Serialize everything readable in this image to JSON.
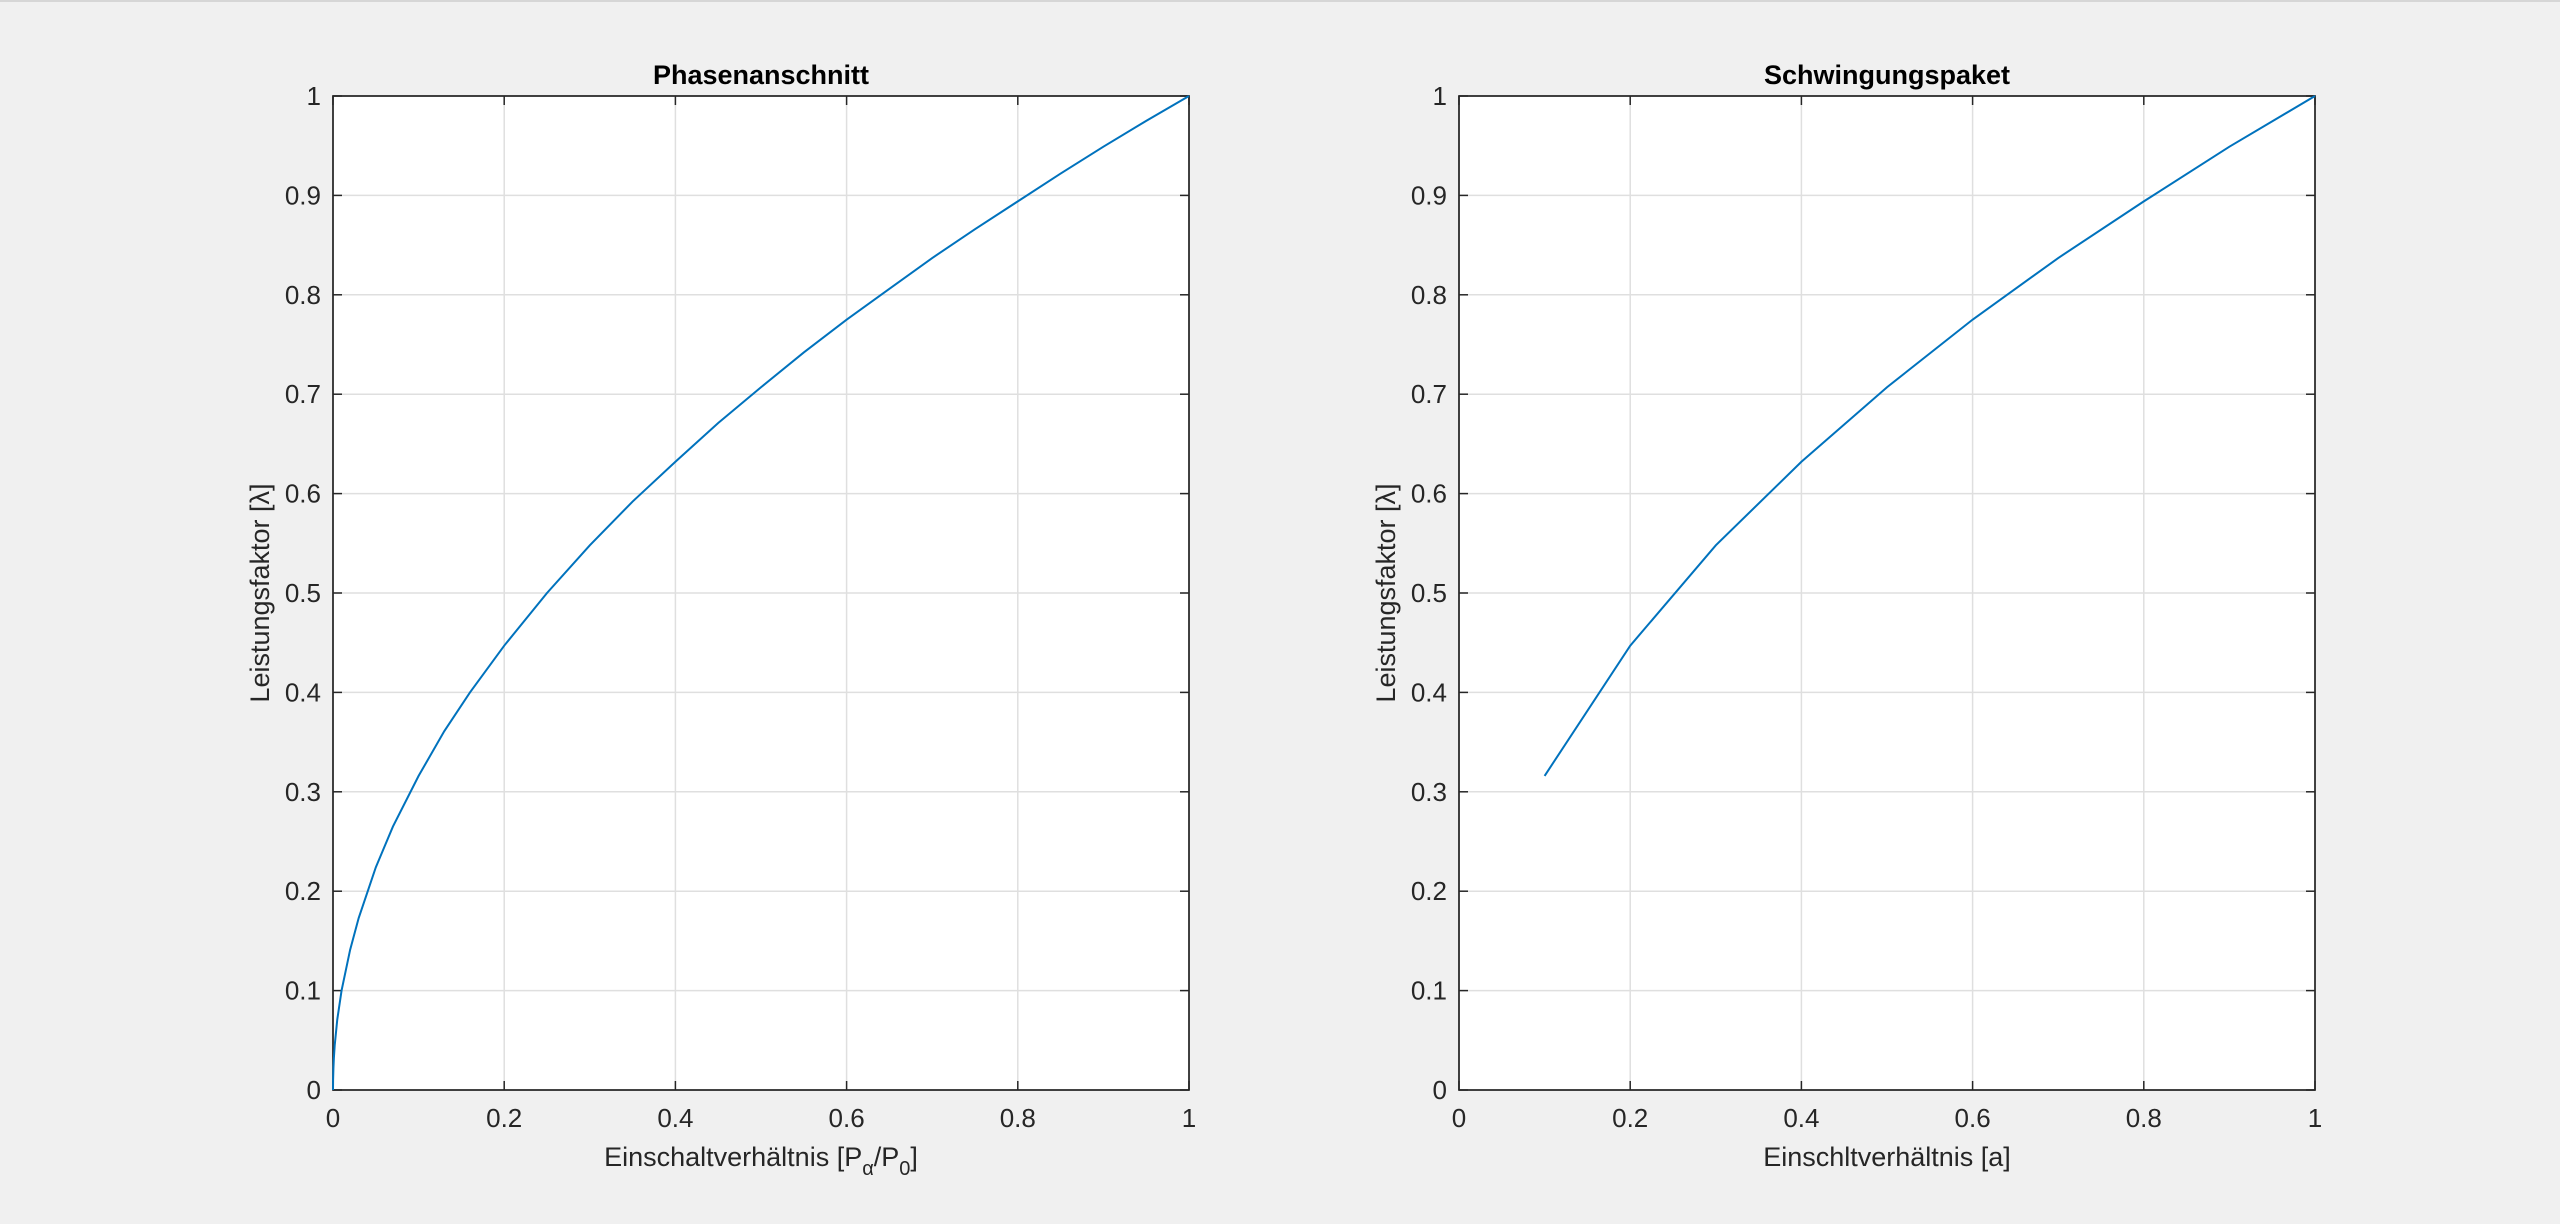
{
  "chart_data": [
    {
      "type": "line",
      "title": "Phasenanschnitt",
      "xlabel": "Einschaltverhältnis [P",
      "xlabel_sub1": "α",
      "xlabel_mid": "/P",
      "xlabel_sub2": "0",
      "xlabel_end": "]",
      "ylabel": "Leistungsfaktor [λ]",
      "xlim": [
        0,
        1
      ],
      "ylim": [
        0,
        1
      ],
      "xticks": [
        "0",
        "0.2",
        "0.4",
        "0.6",
        "0.8",
        "1"
      ],
      "yticks": [
        "0",
        "0.1",
        "0.2",
        "0.3",
        "0.4",
        "0.5",
        "0.6",
        "0.7",
        "0.8",
        "0.9",
        "1"
      ],
      "grid": true,
      "color": "#0072bd",
      "series": [
        {
          "x": [
            0,
            0.0001,
            0.0005,
            0.001,
            0.002,
            0.005,
            0.01,
            0.02,
            0.03,
            0.05,
            0.07,
            0.1,
            0.13,
            0.16,
            0.2,
            0.25,
            0.3,
            0.35,
            0.4,
            0.45,
            0.5,
            0.55,
            0.6,
            0.65,
            0.7,
            0.75,
            0.8,
            0.85,
            0.9,
            0.95,
            1
          ],
          "y": [
            0,
            0.01,
            0.022,
            0.032,
            0.045,
            0.071,
            0.1,
            0.141,
            0.173,
            0.224,
            0.265,
            0.316,
            0.361,
            0.4,
            0.447,
            0.5,
            0.548,
            0.592,
            0.632,
            0.671,
            0.707,
            0.742,
            0.775,
            0.806,
            0.837,
            0.866,
            0.894,
            0.922,
            0.949,
            0.975,
            1
          ]
        }
      ]
    },
    {
      "type": "line",
      "title": "Schwingungspaket",
      "xlabel": "Einschltverhältnis [a]",
      "ylabel": "Leistungsfaktor [λ]",
      "xlim": [
        0,
        1
      ],
      "ylim": [
        0,
        1
      ],
      "xticks": [
        "0",
        "0.2",
        "0.4",
        "0.6",
        "0.8",
        "1"
      ],
      "yticks": [
        "0",
        "0.1",
        "0.2",
        "0.3",
        "0.4",
        "0.5",
        "0.6",
        "0.7",
        "0.8",
        "0.9",
        "1"
      ],
      "grid": true,
      "color": "#0072bd",
      "series": [
        {
          "x": [
            0.1,
            0.2,
            0.3,
            0.4,
            0.5,
            0.6,
            0.7,
            0.8,
            0.9,
            1.0
          ],
          "y": [
            0.316,
            0.447,
            0.548,
            0.632,
            0.707,
            0.775,
            0.837,
            0.894,
            0.949,
            1.0
          ]
        }
      ]
    }
  ]
}
